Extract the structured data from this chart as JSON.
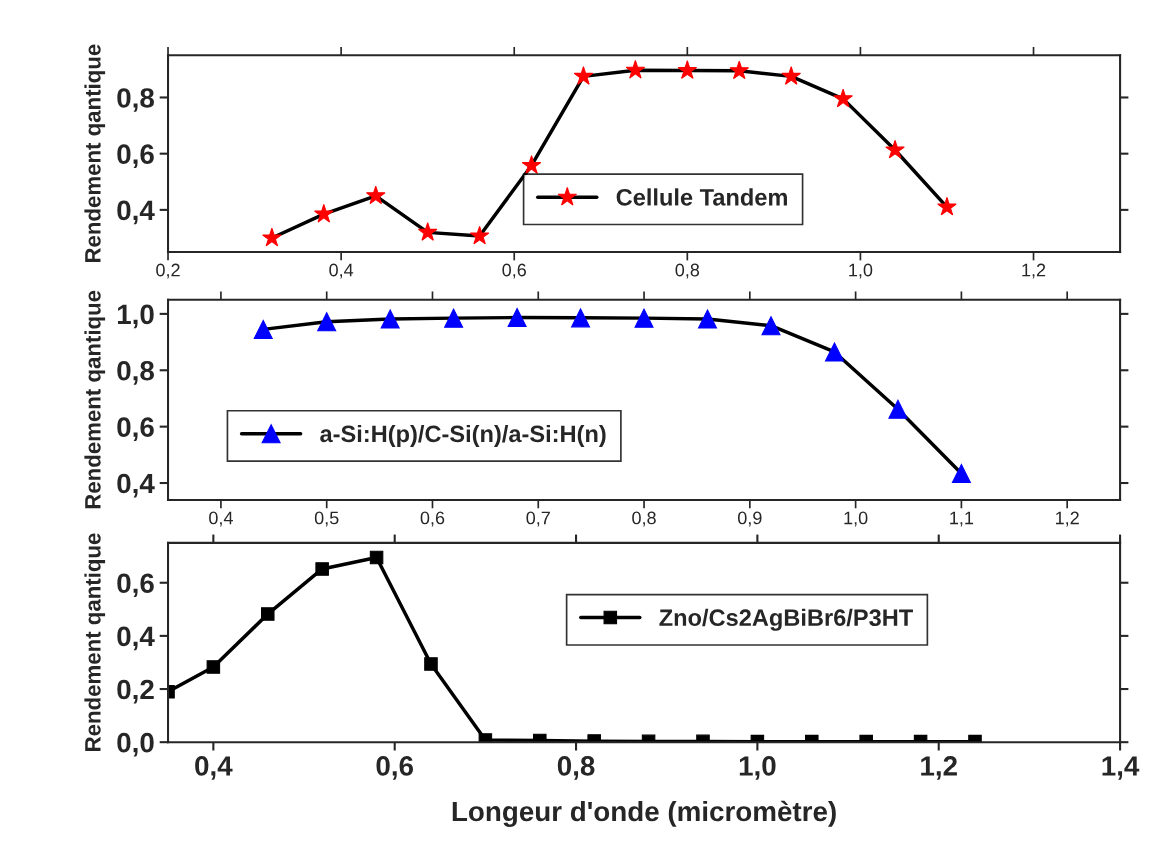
{
  "chart_data": [
    {
      "type": "line",
      "ylabel": "Rendement qantique",
      "marker": "star",
      "legend": "bottom",
      "grid": false,
      "x": [
        0.32,
        0.38,
        0.44,
        0.5,
        0.56,
        0.62,
        0.68,
        0.74,
        0.8,
        0.86,
        0.92,
        0.98,
        1.04,
        1.1
      ],
      "series": [
        {
          "name": "Cellule Tandem",
          "color": "#ff0000",
          "values": [
            0.3,
            0.385,
            0.45,
            0.32,
            0.307,
            0.558,
            0.875,
            0.897,
            0.896,
            0.895,
            0.875,
            0.795,
            0.613,
            0.41
          ]
        }
      ],
      "xlim": [
        0.2,
        1.3
      ],
      "xticks": [
        {
          "value": 0.2,
          "label": "0,2"
        },
        {
          "value": 0.4,
          "label": "0,4"
        },
        {
          "value": 0.6,
          "label": "0,6"
        },
        {
          "value": 0.8,
          "label": "0,8"
        },
        {
          "value": 1.0,
          "label": "1,0"
        },
        {
          "value": 1.2,
          "label": "1,2"
        }
      ],
      "ylim": [
        0.25,
        0.95
      ],
      "yticks": [
        {
          "value": 0.4,
          "label": "0,4"
        },
        {
          "value": 0.6,
          "label": "0,6"
        },
        {
          "value": 0.8,
          "label": "0,8"
        }
      ]
    },
    {
      "type": "line",
      "ylabel": "Rendement qantique",
      "marker": "triangle",
      "legend": "left",
      "grid": false,
      "x": [
        0.44,
        0.5,
        0.56,
        0.62,
        0.68,
        0.74,
        0.8,
        0.86,
        0.92,
        0.98,
        1.04,
        1.1
      ],
      "series": [
        {
          "name": "a-Si:H(p)/C-Si(n)/a-Si:H(n)",
          "color": "#0000ff",
          "values": [
            0.945,
            0.972,
            0.982,
            0.985,
            0.987,
            0.986,
            0.985,
            0.982,
            0.958,
            0.865,
            0.662,
            0.434
          ]
        }
      ],
      "xlim": [
        0.35,
        1.25
      ],
      "xticks": [
        {
          "value": 0.4,
          "label": "0,4"
        },
        {
          "value": 0.5,
          "label": "0,5"
        },
        {
          "value": 0.6,
          "label": "0,6"
        },
        {
          "value": 0.7,
          "label": "0,7"
        },
        {
          "value": 0.8,
          "label": "0,8"
        },
        {
          "value": 0.9,
          "label": "0,9"
        },
        {
          "value": 1.0,
          "label": "1,0"
        },
        {
          "value": 1.1,
          "label": "1,1"
        },
        {
          "value": 1.2,
          "label": "1,2"
        }
      ],
      "ylim": [
        0.34,
        1.05
      ],
      "yticks": [
        {
          "value": 0.4,
          "label": "0,4"
        },
        {
          "value": 0.6,
          "label": "0,6"
        },
        {
          "value": 0.8,
          "label": "0,8"
        },
        {
          "value": 1.0,
          "label": "1,0"
        }
      ]
    },
    {
      "type": "line",
      "xlabel": "Longeur d'onde (micromètre)",
      "ylabel": "Rendement qantique",
      "marker": "square",
      "legend": "top right",
      "grid": false,
      "x": [
        0.35,
        0.4,
        0.46,
        0.52,
        0.58,
        0.64,
        0.7,
        0.76,
        0.82,
        0.88,
        0.94,
        1.0,
        1.06,
        1.12,
        1.18,
        1.24
      ],
      "series": [
        {
          "name": "Zno/Cs2AgBiBr6/P3HT",
          "color": "#000000",
          "values": [
            0.19,
            0.283,
            0.482,
            0.652,
            0.695,
            0.294,
            0.008,
            0.006,
            0.004,
            0.003,
            0.003,
            0.002,
            0.002,
            0.002,
            0.002,
            0.002
          ]
        }
      ],
      "xlim": [
        0.35,
        1.4
      ],
      "xticks": [
        {
          "value": 0.4,
          "label": "0,4"
        },
        {
          "value": 0.6,
          "label": "0,6"
        },
        {
          "value": 0.8,
          "label": "0,8"
        },
        {
          "value": 1.0,
          "label": "1,0"
        },
        {
          "value": 1.2,
          "label": "1,2"
        },
        {
          "value": 1.4,
          "label": "1,4"
        }
      ],
      "ylim": [
        0.0,
        0.75
      ],
      "yticks": [
        {
          "value": 0.0,
          "label": "0,0"
        },
        {
          "value": 0.2,
          "label": "0,2"
        },
        {
          "value": 0.4,
          "label": "0,4"
        },
        {
          "value": 0.6,
          "label": "0,6"
        }
      ]
    }
  ]
}
